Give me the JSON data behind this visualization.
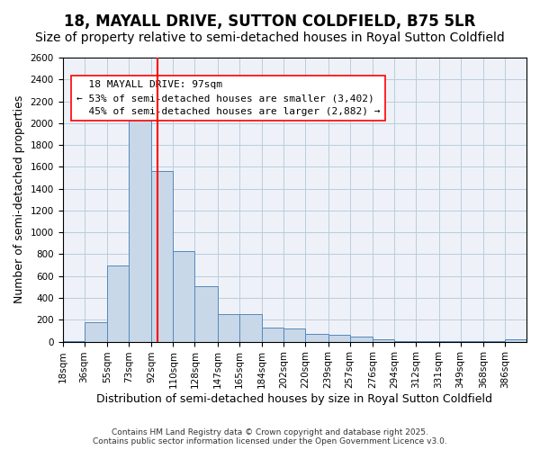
{
  "title": "18, MAYALL DRIVE, SUTTON COLDFIELD, B75 5LR",
  "subtitle": "Size of property relative to semi-detached houses in Royal Sutton Coldfield",
  "xlabel": "Distribution of semi-detached houses by size in Royal Sutton Coldfield",
  "ylabel": "Number of semi-detached properties",
  "footnote1": "Contains HM Land Registry data © Crown copyright and database right 2025.",
  "footnote2": "Contains public sector information licensed under the Open Government Licence v3.0.",
  "property_size": 97,
  "property_label": "18 MAYALL DRIVE: 97sqm",
  "pct_smaller": 53,
  "pct_larger": 45,
  "count_smaller": 3402,
  "count_larger": 2882,
  "bin_labels": [
    "18sqm",
    "36sqm",
    "55sqm",
    "73sqm",
    "92sqm",
    "110sqm",
    "128sqm",
    "147sqm",
    "165sqm",
    "184sqm",
    "202sqm",
    "220sqm",
    "239sqm",
    "257sqm",
    "276sqm",
    "294sqm",
    "312sqm",
    "331sqm",
    "349sqm",
    "368sqm",
    "386sqm"
  ],
  "bin_edges": [
    18,
    36,
    55,
    73,
    92,
    110,
    128,
    147,
    165,
    184,
    202,
    220,
    239,
    257,
    276,
    294,
    312,
    331,
    349,
    368,
    386
  ],
  "bar_heights": [
    5,
    175,
    700,
    2100,
    1560,
    830,
    510,
    250,
    250,
    125,
    120,
    70,
    60,
    50,
    25,
    5,
    5,
    5,
    5,
    5,
    25
  ],
  "bar_color": "#c8d8e8",
  "bar_edge_color": "#5588bb",
  "grid_color": "#bbccdd",
  "bg_color": "#eef2f8",
  "vline_x": 97,
  "vline_color": "red",
  "annotation_box_color": "red",
  "ylim": [
    0,
    2600
  ],
  "title_fontsize": 12,
  "subtitle_fontsize": 10,
  "xlabel_fontsize": 9,
  "ylabel_fontsize": 9,
  "tick_fontsize": 7.5,
  "annotation_fontsize": 8
}
